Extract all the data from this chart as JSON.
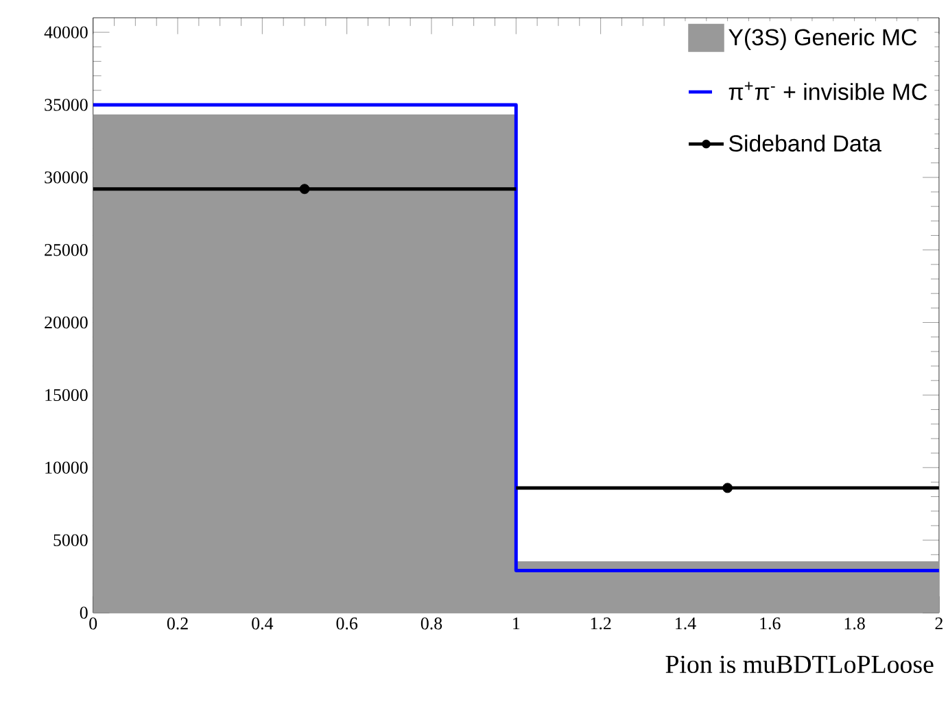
{
  "chart_data": {
    "type": "histogram",
    "xlabel": "Pion is muBDTLoPLoose",
    "bins": [
      0,
      1,
      2
    ],
    "series": [
      {
        "name": "Y(3S) Generic MC",
        "color": "#999999",
        "values": [
          34300,
          3500
        ]
      },
      {
        "type": "step",
        "name": "π$^{+}$π$^{-}$ + invisible MC",
        "color": "#0000ff",
        "x": [
          0,
          1,
          2
        ],
        "values": [
          35000,
          2900,
          2900
        ]
      },
      {
        "type": "scatter",
        "name": "Sideband Data",
        "color": "#000000",
        "x": [
          0.5,
          1.5
        ],
        "values": [
          29200,
          8600
        ],
        "xerrors": [
          0.5,
          0.5
        ],
        "marker": "circle"
      }
    ],
    "xlim": [
      0,
      2
    ],
    "ylim": [
      0,
      41000
    ],
    "xticks": [
      0,
      0.2,
      0.4,
      0.6,
      0.8,
      1,
      1.2,
      1.4,
      1.6,
      1.8,
      2
    ],
    "yticks": [
      0,
      5000,
      10000,
      15000,
      20000,
      25000,
      30000,
      35000,
      40000
    ],
    "legend": "top right"
  }
}
